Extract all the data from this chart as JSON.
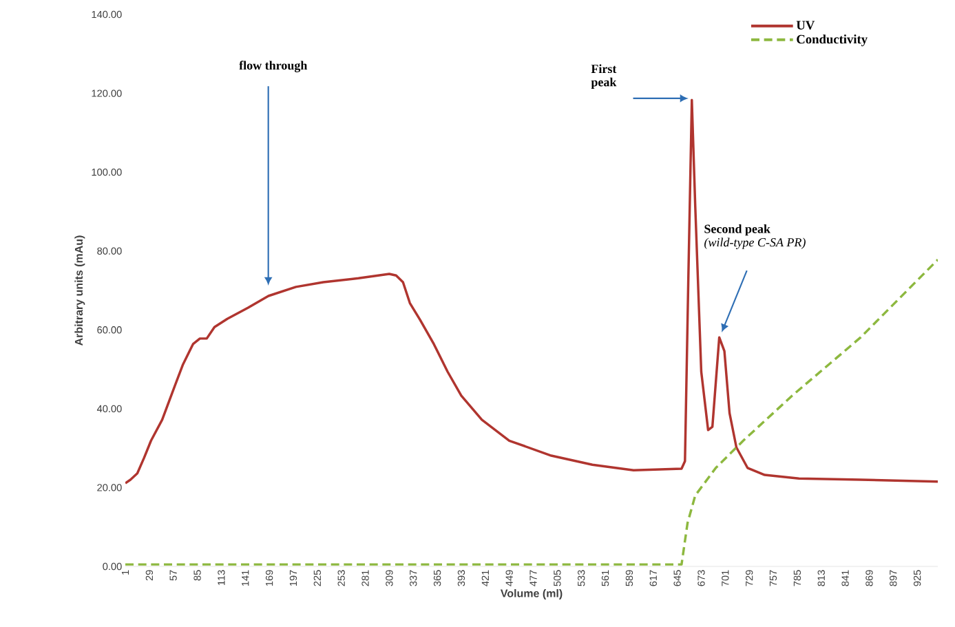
{
  "chart_data": {
    "type": "line",
    "xlabel": "Volume (ml)",
    "ylabel": "Arbitrary units (mAu)",
    "xlim": [
      1,
      949
    ],
    "xticks": [
      1,
      29,
      57,
      85,
      113,
      141,
      169,
      197,
      225,
      253,
      281,
      309,
      337,
      365,
      393,
      421,
      449,
      477,
      505,
      533,
      561,
      589,
      617,
      645,
      673,
      701,
      729,
      757,
      785,
      813,
      841,
      869,
      897,
      925
    ],
    "ylim": [
      0,
      140
    ],
    "yticks": [
      {
        "value": 0,
        "label": "0.00"
      },
      {
        "value": 20,
        "label": "20.00"
      },
      {
        "value": 40,
        "label": "40.00"
      },
      {
        "value": 60,
        "label": "60.00"
      },
      {
        "value": 80,
        "label": "80.00"
      },
      {
        "value": 100,
        "label": "100.00"
      },
      {
        "value": 120,
        "label": "120.00"
      },
      {
        "value": 140,
        "label": "140.00"
      }
    ],
    "legend": "top right",
    "grid": false,
    "marker": "none",
    "series": [
      {
        "name": "UV",
        "color": "#b0352f",
        "line_style": "solid",
        "x": [
          1,
          7,
          15,
          23,
          31,
          44,
          56,
          68,
          80,
          88,
          96,
          105,
          120,
          144,
          168,
          200,
          232,
          273,
          309,
          317,
          325,
          333,
          345,
          361,
          377,
          393,
          417,
          449,
          498,
          546,
          594,
          650,
          654,
          658,
          662,
          666,
          673,
          681,
          686,
          694,
          700,
          706,
          714,
          727,
          747,
          787,
          859,
          949
        ],
        "values": [
          21.1,
          22.0,
          23.6,
          27.6,
          31.9,
          37.2,
          44.2,
          51.1,
          56.4,
          57.8,
          57.8,
          60.7,
          62.8,
          65.6,
          68.6,
          70.9,
          72.1,
          73.1,
          74.2,
          73.8,
          72.1,
          66.8,
          62.5,
          56.4,
          49.4,
          43.3,
          37.2,
          31.9,
          28.1,
          25.8,
          24.4,
          24.8,
          26.7,
          73.8,
          118.3,
          91.3,
          49.4,
          34.6,
          35.4,
          58.1,
          54.6,
          38.9,
          30.2,
          25.0,
          23.2,
          22.3,
          22.0,
          21.5
        ]
      },
      {
        "name": "Conductivity",
        "color": "#8db83f",
        "line_style": "dashed",
        "x": [
          1,
          650,
          657,
          666,
          690,
          722,
          779,
          859,
          949
        ],
        "values": [
          0.5,
          0.5,
          11.0,
          18.0,
          25.0,
          31.9,
          43.3,
          58.1,
          77.8
        ]
      }
    ],
    "annotations": [
      "flow through",
      "First peak",
      "Second peak",
      "(wild-type C-SA PR)"
    ]
  }
}
